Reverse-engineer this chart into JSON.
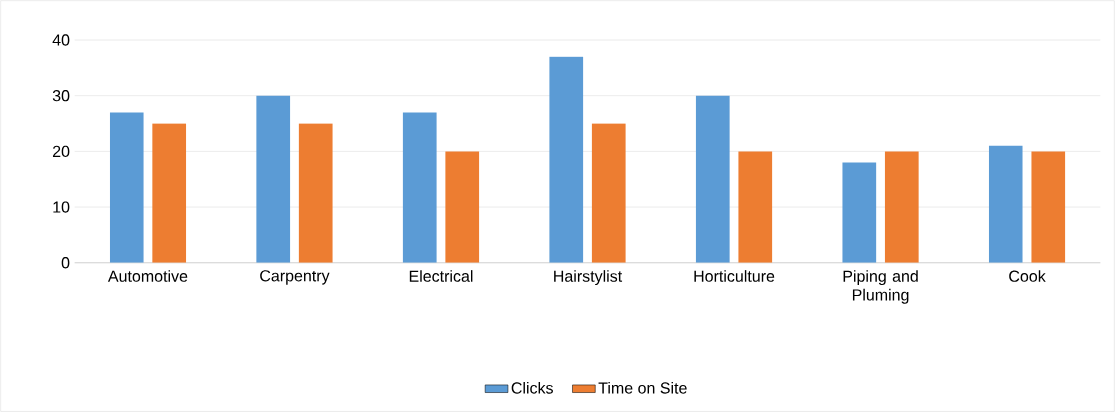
{
  "chart_data": {
    "type": "bar",
    "categories": [
      "Automotive",
      "Carpentry",
      "Electrical",
      "Hairstylist",
      "Horticulture",
      "Piping and Pluming",
      "Cook"
    ],
    "series": [
      {
        "name": "Clicks",
        "color": "#5b9bd5",
        "values": [
          27,
          30,
          27,
          37,
          30,
          18,
          21
        ]
      },
      {
        "name": "Time on Site",
        "color": "#ed7d31",
        "values": [
          25,
          25,
          20,
          25,
          20,
          20,
          20
        ]
      }
    ],
    "ylim": [
      0,
      40
    ],
    "yticks": [
      0,
      10,
      20,
      30,
      40
    ],
    "grid": "y",
    "legend": "bottom"
  }
}
